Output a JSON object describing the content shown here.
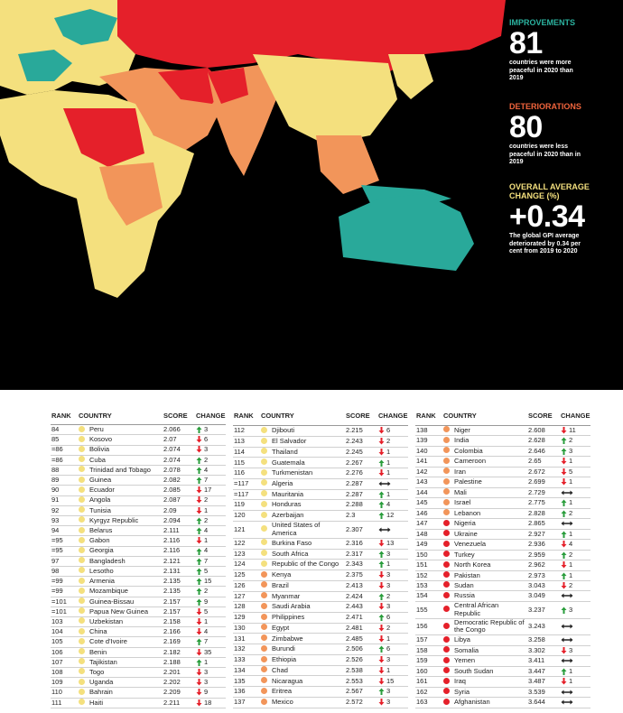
{
  "panel": {
    "improvements": {
      "label": "IMPROVEMENTS",
      "number": "81",
      "text": "countries were more peaceful in 2020 than 2019"
    },
    "deteriorations": {
      "label": "DETERIORATIONS",
      "number": "80",
      "text": "countries were less peaceful in 2020 than in 2019"
    },
    "overall": {
      "label": "OVERALL AVERAGE CHANGE (%)",
      "number": "+0.34",
      "text": "The global GPI average deteriorated by 0.34 per cent from 2019 to 2020"
    }
  },
  "table": {
    "headers": [
      "RANK",
      "COUNTRY",
      "SCORE",
      "CHANGE"
    ],
    "columns": [
      [
        {
          "rank": "84",
          "country": "Peru",
          "score": "2.066",
          "dir": "up",
          "change": "3",
          "dot": "#f4e07e"
        },
        {
          "rank": "85",
          "country": "Kosovo",
          "score": "2.07",
          "dir": "down",
          "change": "6",
          "dot": "#f4e07e"
        },
        {
          "rank": "=86",
          "country": "Bolivia",
          "score": "2.074",
          "dir": "down",
          "change": "3",
          "dot": "#f4e07e"
        },
        {
          "rank": "=86",
          "country": "Cuba",
          "score": "2.074",
          "dir": "up",
          "change": "2",
          "dot": "#f4e07e"
        },
        {
          "rank": "88",
          "country": "Trinidad and Tobago",
          "score": "2.078",
          "dir": "up",
          "change": "4",
          "dot": "#f4e07e"
        },
        {
          "rank": "89",
          "country": "Guinea",
          "score": "2.082",
          "dir": "up",
          "change": "7",
          "dot": "#f4e07e"
        },
        {
          "rank": "90",
          "country": "Ecuador",
          "score": "2.085",
          "dir": "down",
          "change": "17",
          "dot": "#f4e07e"
        },
        {
          "rank": "91",
          "country": "Angola",
          "score": "2.087",
          "dir": "down",
          "change": "2",
          "dot": "#f4e07e"
        },
        {
          "rank": "92",
          "country": "Tunisia",
          "score": "2.09",
          "dir": "down",
          "change": "1",
          "dot": "#f4e07e"
        },
        {
          "rank": "93",
          "country": "Kyrgyz Republic",
          "score": "2.094",
          "dir": "up",
          "change": "2",
          "dot": "#f4e07e"
        },
        {
          "rank": "94",
          "country": "Belarus",
          "score": "2.111",
          "dir": "up",
          "change": "4",
          "dot": "#f4e07e"
        },
        {
          "rank": "=95",
          "country": "Gabon",
          "score": "2.116",
          "dir": "down",
          "change": "1",
          "dot": "#f4e07e"
        },
        {
          "rank": "=95",
          "country": "Georgia",
          "score": "2.116",
          "dir": "up",
          "change": "4",
          "dot": "#f4e07e"
        },
        {
          "rank": "97",
          "country": "Bangladesh",
          "score": "2.121",
          "dir": "up",
          "change": "7",
          "dot": "#f4e07e"
        },
        {
          "rank": "98",
          "country": "Lesotho",
          "score": "2.131",
          "dir": "up",
          "change": "5",
          "dot": "#f4e07e"
        },
        {
          "rank": "=99",
          "country": "Armenia",
          "score": "2.135",
          "dir": "up",
          "change": "15",
          "dot": "#f4e07e"
        },
        {
          "rank": "=99",
          "country": "Mozambique",
          "score": "2.135",
          "dir": "up",
          "change": "2",
          "dot": "#f4e07e"
        },
        {
          "rank": "=101",
          "country": "Guinea-Bissau",
          "score": "2.157",
          "dir": "up",
          "change": "9",
          "dot": "#f4e07e"
        },
        {
          "rank": "=101",
          "country": "Papua New Guinea",
          "score": "2.157",
          "dir": "down",
          "change": "5",
          "dot": "#f4e07e"
        },
        {
          "rank": "103",
          "country": "Uzbekistan",
          "score": "2.158",
          "dir": "down",
          "change": "1",
          "dot": "#f4e07e"
        },
        {
          "rank": "104",
          "country": "China",
          "score": "2.166",
          "dir": "down",
          "change": "4",
          "dot": "#f4e07e"
        },
        {
          "rank": "105",
          "country": "Cote d'Ivoire",
          "score": "2.169",
          "dir": "up",
          "change": "7",
          "dot": "#f4e07e"
        },
        {
          "rank": "106",
          "country": "Benin",
          "score": "2.182",
          "dir": "down",
          "change": "35",
          "dot": "#f4e07e"
        },
        {
          "rank": "107",
          "country": "Tajikistan",
          "score": "2.188",
          "dir": "up",
          "change": "1",
          "dot": "#f4e07e"
        },
        {
          "rank": "108",
          "country": "Togo",
          "score": "2.201",
          "dir": "down",
          "change": "3",
          "dot": "#f4e07e"
        },
        {
          "rank": "109",
          "country": "Uganda",
          "score": "2.202",
          "dir": "down",
          "change": "3",
          "dot": "#f4e07e"
        },
        {
          "rank": "110",
          "country": "Bahrain",
          "score": "2.209",
          "dir": "down",
          "change": "9",
          "dot": "#f4e07e"
        },
        {
          "rank": "111",
          "country": "Haiti",
          "score": "2.211",
          "dir": "down",
          "change": "18",
          "dot": "#f4e07e"
        }
      ],
      [
        {
          "rank": "112",
          "country": "Djibouti",
          "score": "2.215",
          "dir": "down",
          "change": "6",
          "dot": "#f4e07e"
        },
        {
          "rank": "113",
          "country": "El Salvador",
          "score": "2.243",
          "dir": "down",
          "change": "2",
          "dot": "#f4e07e"
        },
        {
          "rank": "114",
          "country": "Thailand",
          "score": "2.245",
          "dir": "down",
          "change": "1",
          "dot": "#f4e07e"
        },
        {
          "rank": "115",
          "country": "Guatemala",
          "score": "2.267",
          "dir": "up",
          "change": "1",
          "dot": "#f4e07e"
        },
        {
          "rank": "116",
          "country": "Turkmenistan",
          "score": "2.276",
          "dir": "down",
          "change": "1",
          "dot": "#f4e07e"
        },
        {
          "rank": "=117",
          "country": "Algeria",
          "score": "2.287",
          "dir": "same",
          "dot": "#f4e07e"
        },
        {
          "rank": "=117",
          "country": "Mauritania",
          "score": "2.287",
          "dir": "up",
          "change": "1",
          "dot": "#f4e07e"
        },
        {
          "rank": "119",
          "country": "Honduras",
          "score": "2.288",
          "dir": "up",
          "change": "4",
          "dot": "#f4e07e"
        },
        {
          "rank": "120",
          "country": "Azerbaijan",
          "score": "2.3",
          "dir": "up",
          "change": "12",
          "dot": "#f4e07e"
        },
        {
          "rank": "121",
          "country": "United States of America",
          "score": "2.307",
          "dir": "same",
          "dot": "#f4e07e"
        },
        {
          "rank": "122",
          "country": "Burkina Faso",
          "score": "2.316",
          "dir": "down",
          "change": "13",
          "dot": "#f4e07e"
        },
        {
          "rank": "123",
          "country": "South Africa",
          "score": "2.317",
          "dir": "up",
          "change": "3",
          "dot": "#f4e07e"
        },
        {
          "rank": "124",
          "country": "Republic of the Congo",
          "score": "2.343",
          "dir": "up",
          "change": "1",
          "dot": "#f4e07e"
        },
        {
          "rank": "125",
          "country": "Kenya",
          "score": "2.375",
          "dir": "down",
          "change": "3",
          "dot": "#f2955a"
        },
        {
          "rank": "126",
          "country": "Brazil",
          "score": "2.413",
          "dir": "down",
          "change": "3",
          "dot": "#f2955a"
        },
        {
          "rank": "127",
          "country": "Myanmar",
          "score": "2.424",
          "dir": "up",
          "change": "2",
          "dot": "#f2955a"
        },
        {
          "rank": "128",
          "country": "Saudi Arabia",
          "score": "2.443",
          "dir": "down",
          "change": "3",
          "dot": "#f2955a"
        },
        {
          "rank": "129",
          "country": "Philippines",
          "score": "2.471",
          "dir": "up",
          "change": "6",
          "dot": "#f2955a"
        },
        {
          "rank": "130",
          "country": "Egypt",
          "score": "2.481",
          "dir": "down",
          "change": "2",
          "dot": "#f2955a"
        },
        {
          "rank": "131",
          "country": "Zimbabwe",
          "score": "2.485",
          "dir": "down",
          "change": "1",
          "dot": "#f2955a"
        },
        {
          "rank": "132",
          "country": "Burundi",
          "score": "2.506",
          "dir": "up",
          "change": "6",
          "dot": "#f2955a"
        },
        {
          "rank": "133",
          "country": "Ethiopia",
          "score": "2.526",
          "dir": "down",
          "change": "3",
          "dot": "#f2955a"
        },
        {
          "rank": "134",
          "country": "Chad",
          "score": "2.538",
          "dir": "down",
          "change": "1",
          "dot": "#f2955a"
        },
        {
          "rank": "135",
          "country": "Nicaragua",
          "score": "2.553",
          "dir": "down",
          "change": "15",
          "dot": "#f2955a"
        },
        {
          "rank": "136",
          "country": "Eritrea",
          "score": "2.567",
          "dir": "up",
          "change": "3",
          "dot": "#f2955a"
        },
        {
          "rank": "137",
          "country": "Mexico",
          "score": "2.572",
          "dir": "down",
          "change": "3",
          "dot": "#f2955a"
        }
      ],
      [
        {
          "rank": "138",
          "country": "Niger",
          "score": "2.608",
          "dir": "down",
          "change": "11",
          "dot": "#f2955a"
        },
        {
          "rank": "139",
          "country": "India",
          "score": "2.628",
          "dir": "up",
          "change": "2",
          "dot": "#f2955a"
        },
        {
          "rank": "140",
          "country": "Colombia",
          "score": "2.646",
          "dir": "up",
          "change": "3",
          "dot": "#f2955a"
        },
        {
          "rank": "141",
          "country": "Cameroon",
          "score": "2.65",
          "dir": "down",
          "change": "1",
          "dot": "#f2955a"
        },
        {
          "rank": "142",
          "country": "Iran",
          "score": "2.672",
          "dir": "down",
          "change": "5",
          "dot": "#f2955a"
        },
        {
          "rank": "143",
          "country": "Palestine",
          "score": "2.699",
          "dir": "down",
          "change": "1",
          "dot": "#f2955a"
        },
        {
          "rank": "144",
          "country": "Mali",
          "score": "2.729",
          "dir": "same",
          "dot": "#f2955a"
        },
        {
          "rank": "145",
          "country": "Israel",
          "score": "2.775",
          "dir": "up",
          "change": "1",
          "dot": "#f2955a"
        },
        {
          "rank": "146",
          "country": "Lebanon",
          "score": "2.828",
          "dir": "up",
          "change": "2",
          "dot": "#f2955a"
        },
        {
          "rank": "147",
          "country": "Nigeria",
          "score": "2.865",
          "dir": "same",
          "dot": "#e5202a"
        },
        {
          "rank": "148",
          "country": "Ukraine",
          "score": "2.927",
          "dir": "up",
          "change": "1",
          "dot": "#e5202a"
        },
        {
          "rank": "149",
          "country": "Venezuela",
          "score": "2.936",
          "dir": "down",
          "change": "4",
          "dot": "#e5202a"
        },
        {
          "rank": "150",
          "country": "Turkey",
          "score": "2.959",
          "dir": "up",
          "change": "2",
          "dot": "#e5202a"
        },
        {
          "rank": "151",
          "country": "North Korea",
          "score": "2.962",
          "dir": "down",
          "change": "1",
          "dot": "#e5202a"
        },
        {
          "rank": "152",
          "country": "Pakistan",
          "score": "2.973",
          "dir": "up",
          "change": "1",
          "dot": "#e5202a"
        },
        {
          "rank": "153",
          "country": "Sudan",
          "score": "3.043",
          "dir": "down",
          "change": "2",
          "dot": "#e5202a"
        },
        {
          "rank": "154",
          "country": "Russia",
          "score": "3.049",
          "dir": "same",
          "dot": "#e5202a"
        },
        {
          "rank": "155",
          "country": "Central African Republic",
          "score": "3.237",
          "dir": "up",
          "change": "3",
          "dot": "#e5202a"
        },
        {
          "rank": "156",
          "country": "Democratic Republic of the Congo",
          "score": "3.243",
          "dir": "same",
          "dot": "#e5202a"
        },
        {
          "rank": "157",
          "country": "Libya",
          "score": "3.258",
          "dir": "same",
          "dot": "#e5202a"
        },
        {
          "rank": "158",
          "country": "Somalia",
          "score": "3.302",
          "dir": "down",
          "change": "3",
          "dot": "#e5202a"
        },
        {
          "rank": "159",
          "country": "Yemen",
          "score": "3.411",
          "dir": "same",
          "dot": "#e5202a"
        },
        {
          "rank": "160",
          "country": "South Sudan",
          "score": "3.447",
          "dir": "up",
          "change": "1",
          "dot": "#e5202a"
        },
        {
          "rank": "161",
          "country": "Iraq",
          "score": "3.487",
          "dir": "down",
          "change": "1",
          "dot": "#e5202a"
        },
        {
          "rank": "162",
          "country": "Syria",
          "score": "3.539",
          "dir": "same",
          "dot": "#e5202a"
        },
        {
          "rank": "163",
          "country": "Afghanistan",
          "score": "3.644",
          "dir": "same",
          "dot": "#e5202a"
        }
      ]
    ]
  }
}
